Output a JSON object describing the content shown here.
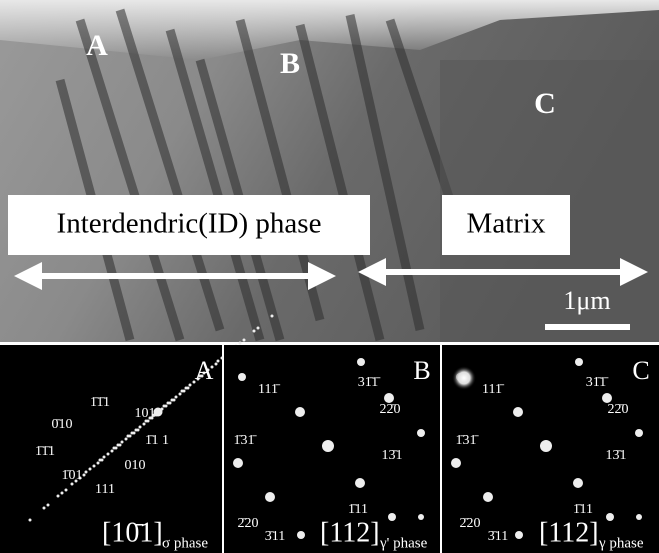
{
  "image": {
    "regions": [
      "A",
      "B",
      "C"
    ],
    "boxes": [
      "Interdendric(ID) phase",
      "Matrix"
    ],
    "scale_bar": "1μm"
  },
  "panels": [
    {
      "label": "A",
      "zone": "[10̄1]",
      "phase": "σ phase",
      "spots": [
        "1̄1̄1",
        "101",
        "0̄10",
        "1̄1 1",
        "1̄1̄1",
        "010",
        "1̄01",
        "111"
      ]
    },
    {
      "label": "B",
      "zone": "[112]",
      "phase": "γ' phase",
      "spots": [
        "31̄1̄",
        "111̄",
        "22̄0",
        "1̄31̄",
        "13̄1",
        "2̄20",
        "1̄11",
        "3̄11"
      ]
    },
    {
      "label": "C",
      "zone": "[112]",
      "phase": "γ phase",
      "spots": [
        "31̄1̄",
        "111̄",
        "22̄0",
        "1̄31̄",
        "13̄1",
        "2̄20",
        "1̄11",
        "3̄11"
      ]
    }
  ]
}
